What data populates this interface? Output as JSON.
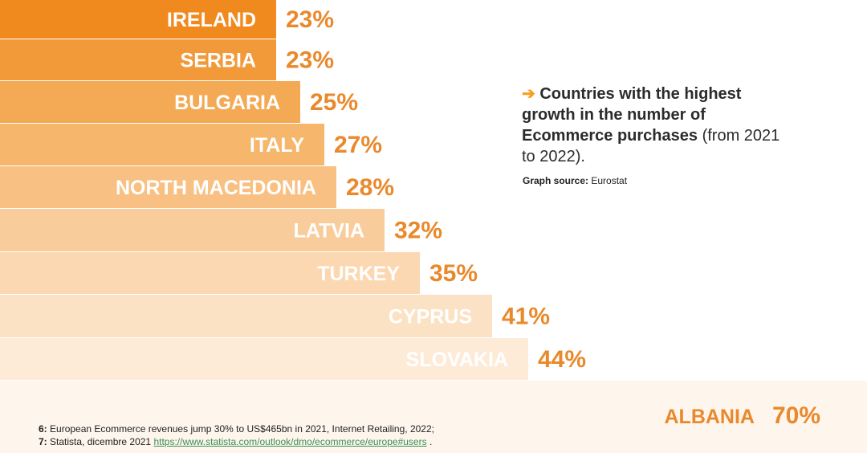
{
  "chart_data": {
    "type": "bar",
    "orientation": "horizontal",
    "title": "Countries with the highest growth in the number of Ecommerce purchases (from 2021 to 2022).",
    "categories": [
      "IRELAND",
      "SERBIA",
      "BULGARIA",
      "ITALY",
      "NORTH MACEDONIA",
      "LATVIA",
      "TURKEY",
      "CYPRUS",
      "SLOVAKIA",
      "ALBANIA"
    ],
    "values": [
      23,
      23,
      25,
      27,
      28,
      32,
      35,
      41,
      44,
      70
    ],
    "value_labels": [
      "23%",
      "23%",
      "25%",
      "27%",
      "28%",
      "32%",
      "35%",
      "41%",
      "44%",
      "70%"
    ],
    "unit": "%",
    "colors": [
      "#f0891e",
      "#f29a3a",
      "#f4a955",
      "#f6b66b",
      "#f8c183",
      "#f9cd9b",
      "#fbd8b1",
      "#fce2c5",
      "#fdebd8",
      "#fef5ec"
    ]
  },
  "caption": {
    "arrow": "➔",
    "bold_text": "Countries with the highest growth in the number of Ecommerce purchases",
    "normal_text": " (from 2021 to 2022)."
  },
  "source": {
    "label": "Graph source:",
    "value": "Eurostat"
  },
  "footnotes": {
    "note6_num": "6:",
    "note6_text": "European Ecommerce revenues jump 30% to US$465bn in 2021, Internet Retailing, 2022;",
    "note7_num": "7:",
    "note7_text": "Statista, dicembre 2021",
    "note7_link": "https://www.statista.com/outlook/dmo/ecommerce/europe#users",
    "note7_end": "."
  }
}
